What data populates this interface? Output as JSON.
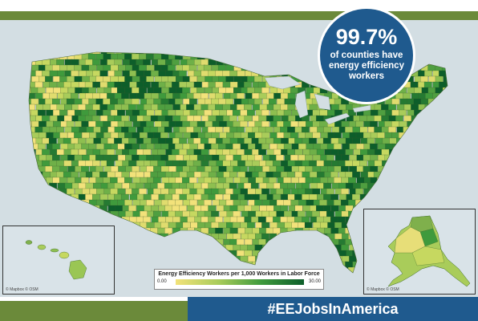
{
  "stat": {
    "value": "99.7%",
    "caption": "of counties have energy efficiency workers"
  },
  "hashtag": "#EEJobsInAmerica",
  "legend": {
    "title": "Energy Efficiency Workers per 1,000 Workers in Labor Force",
    "min": "0.00",
    "max": "30.00",
    "colors": [
      "#f2e27a",
      "#a9cc5a",
      "#3f9a3c",
      "#0d5e2a"
    ]
  },
  "attribution": {
    "hawaii": "© Mapbox © OSM",
    "alaska": "© Mapbox © OSM",
    "main": "© Mapbox © OSM"
  },
  "colors": {
    "brand_green": "#6b8a3a",
    "brand_blue": "#1f5a8e",
    "water": "#d3dee3"
  }
}
